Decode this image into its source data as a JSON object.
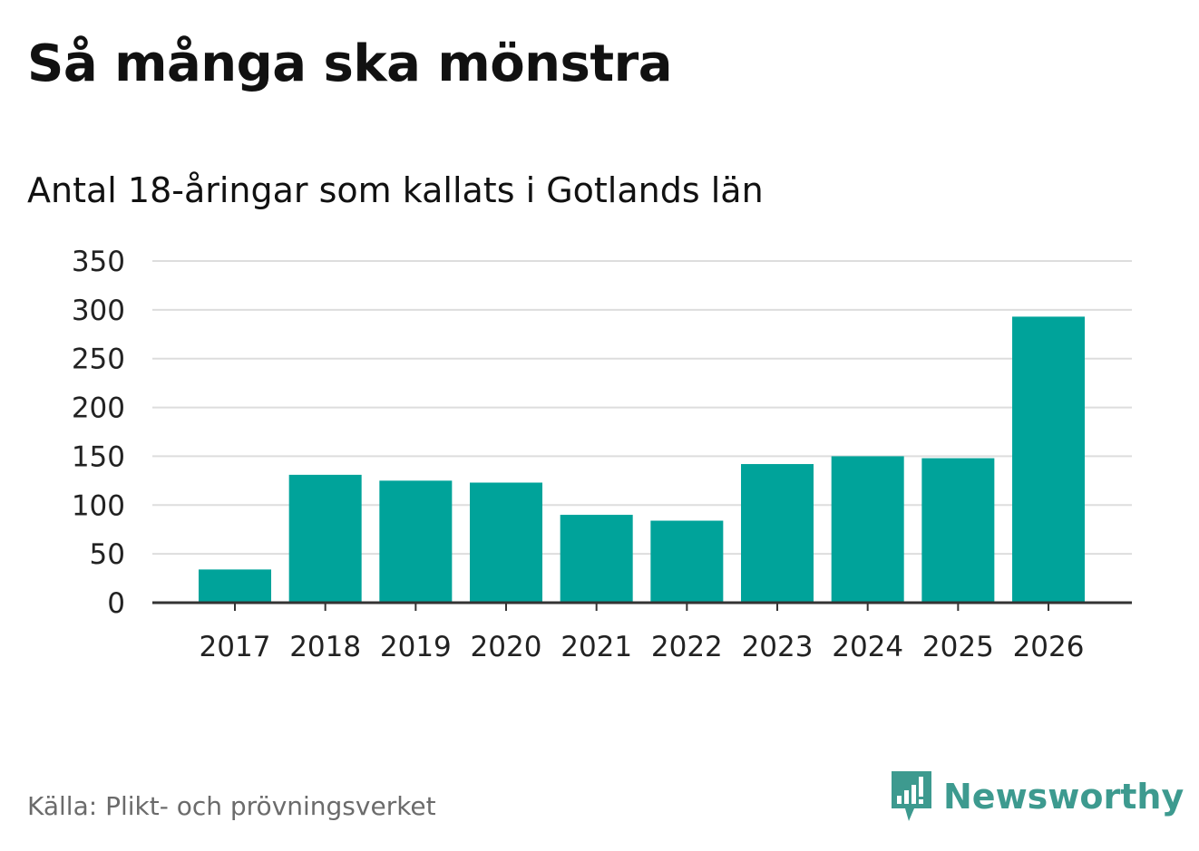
{
  "header": {
    "title": "Så många ska mönstra",
    "subtitle": "Antal 18-åringar som kallats i Gotlands län"
  },
  "footer": {
    "source": "Källa: Plikt- och prövningsverket",
    "logo_text": "Newsworthy"
  },
  "colors": {
    "bar": "#00a39a",
    "grid": "#dddddd",
    "axis": "#333333",
    "logo": "#3d9a8f"
  },
  "chart_data": {
    "type": "bar",
    "title": "Så många ska mönstra",
    "subtitle": "Antal 18-åringar som kallats i Gotlands län",
    "xlabel": "",
    "ylabel": "",
    "categories": [
      "2017",
      "2018",
      "2019",
      "2020",
      "2021",
      "2022",
      "2023",
      "2024",
      "2025",
      "2026"
    ],
    "values": [
      34,
      131,
      125,
      123,
      90,
      84,
      142,
      150,
      148,
      293
    ],
    "ylim": [
      0,
      350
    ],
    "yticks": [
      0,
      50,
      100,
      150,
      200,
      250,
      300,
      350
    ],
    "grid": true,
    "legend": "none"
  }
}
